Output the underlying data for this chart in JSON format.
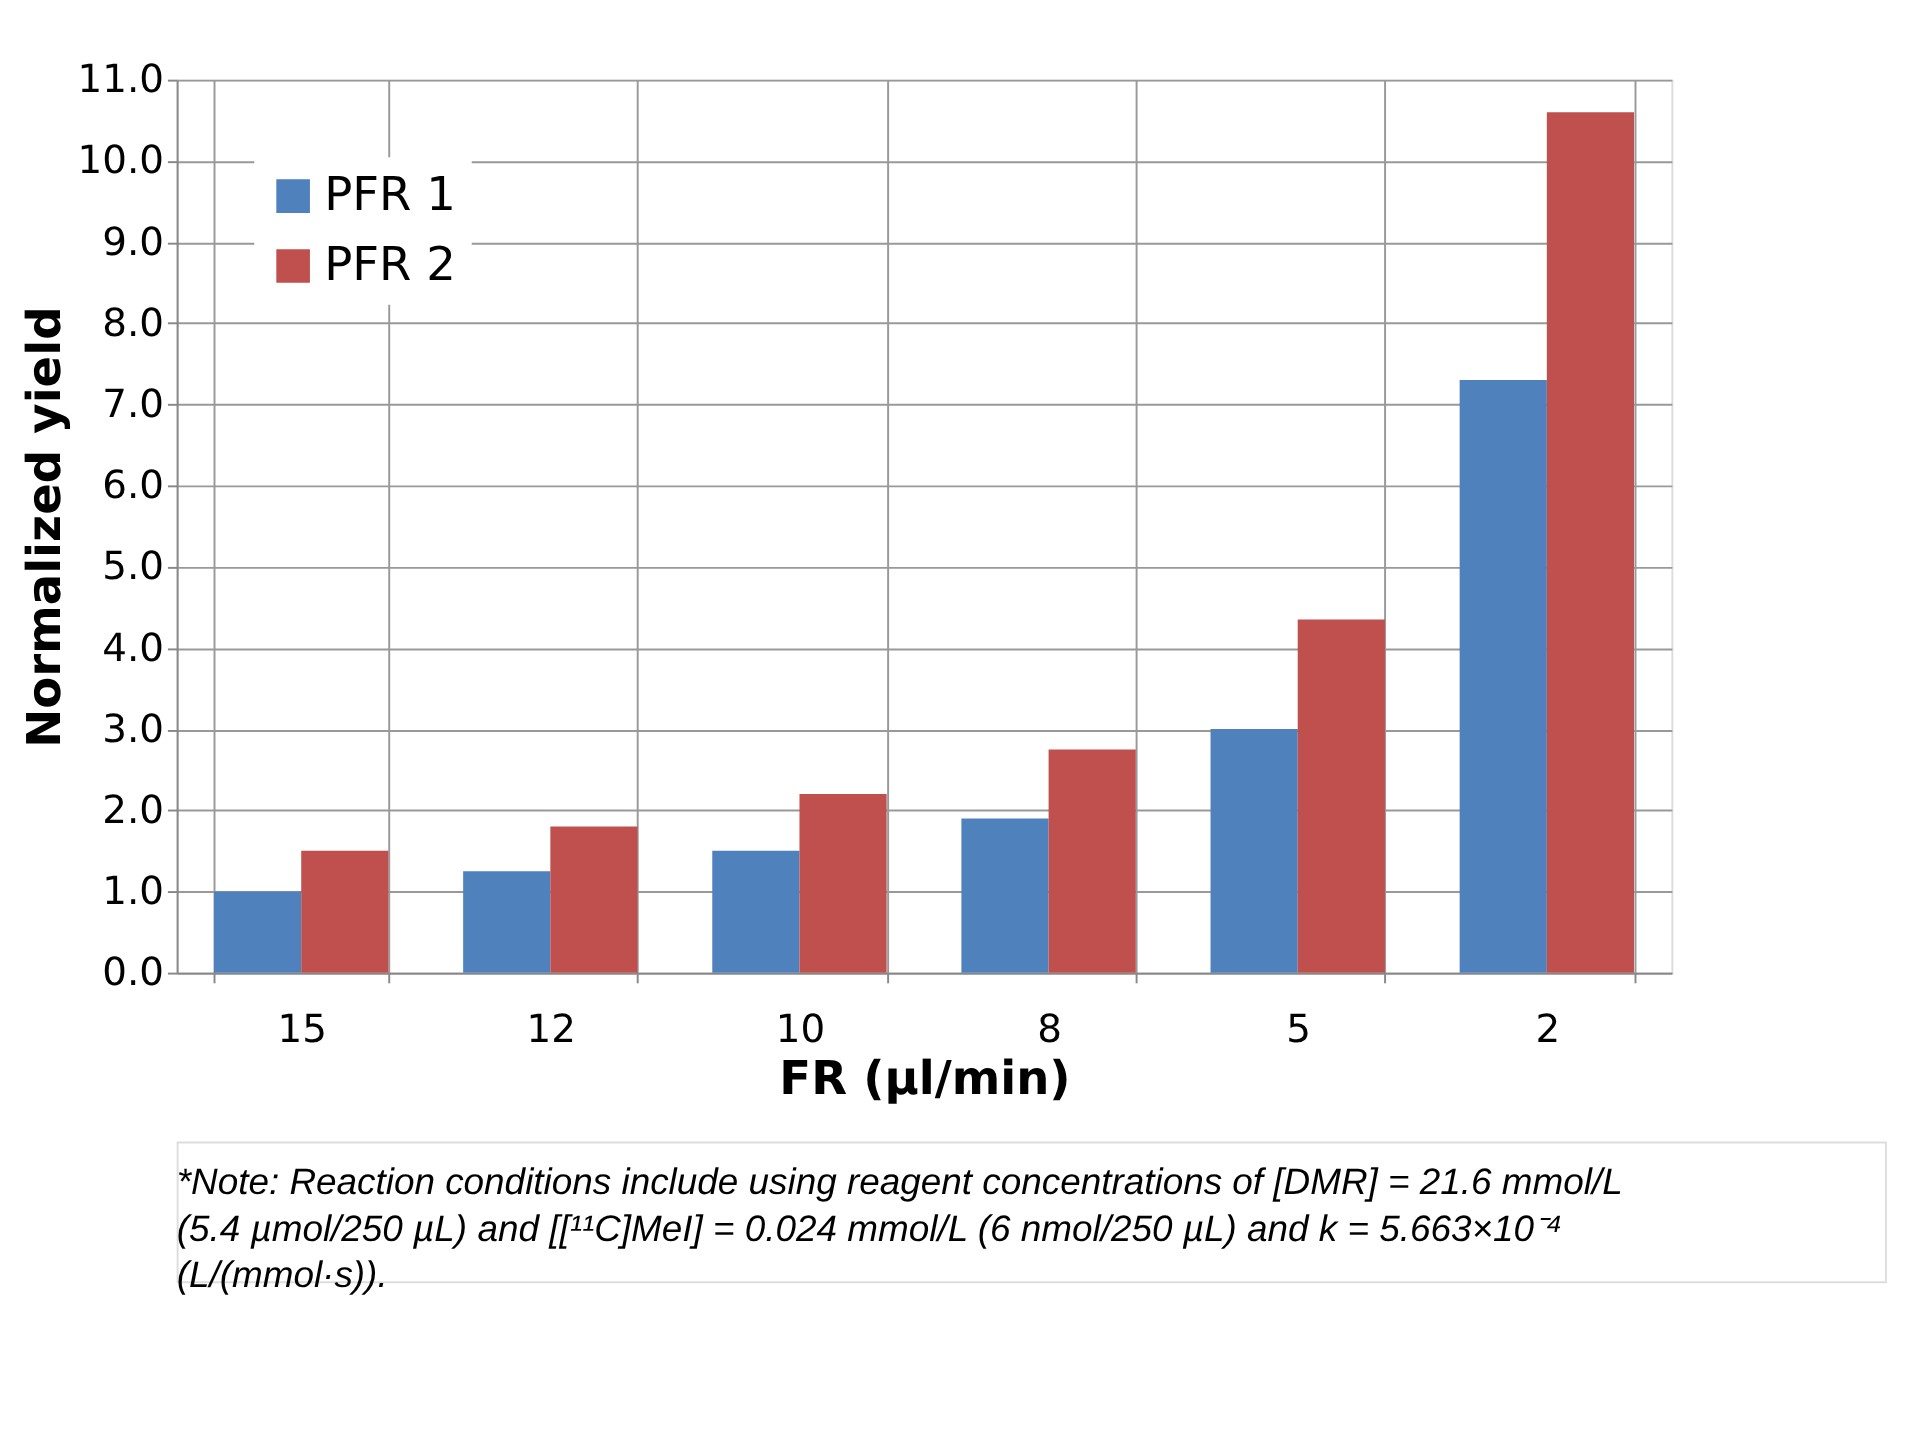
{
  "chart_data": {
    "type": "bar",
    "xlabel": "FR (µl/min)",
    "ylabel": "Normalized yield",
    "categories": [
      "15",
      "12",
      "10",
      "8",
      "5",
      "2"
    ],
    "series": [
      {
        "name": "PFR 1",
        "color": "#4f81bd",
        "values": [
          1.0,
          1.25,
          1.5,
          1.9,
          3.0,
          7.3
        ]
      },
      {
        "name": "PFR 2",
        "color": "#c0504d",
        "values": [
          1.5,
          1.8,
          2.2,
          2.75,
          4.35,
          10.6
        ]
      }
    ],
    "ylim": [
      0,
      11
    ],
    "yticks": [
      {
        "value": 0,
        "label": "0.0"
      },
      {
        "value": 1,
        "label": "1.0"
      },
      {
        "value": 2,
        "label": "2.0"
      },
      {
        "value": 3,
        "label": "3.0"
      },
      {
        "value": 4,
        "label": "4.0"
      },
      {
        "value": 5,
        "label": "5.0"
      },
      {
        "value": 6,
        "label": "6.0"
      },
      {
        "value": 7,
        "label": "7.0"
      },
      {
        "value": 8,
        "label": "8.0"
      },
      {
        "value": 9,
        "label": "9.0"
      },
      {
        "value": 10,
        "label": "10.0"
      },
      {
        "value": 11,
        "label": "11.0"
      }
    ],
    "grid": true,
    "legend": "top left",
    "annotations": [
      "*Note: Reaction conditions include using reagent concentrations of [DMR] = 21.6 mmol/L (5.4 µmol/250 µL) and [[¹¹C]MeI] = 0.024 mmol/L (6 nmol/250 µL) and k = 5.663×10⁻⁴ (L/(mmol·s))."
    ]
  }
}
